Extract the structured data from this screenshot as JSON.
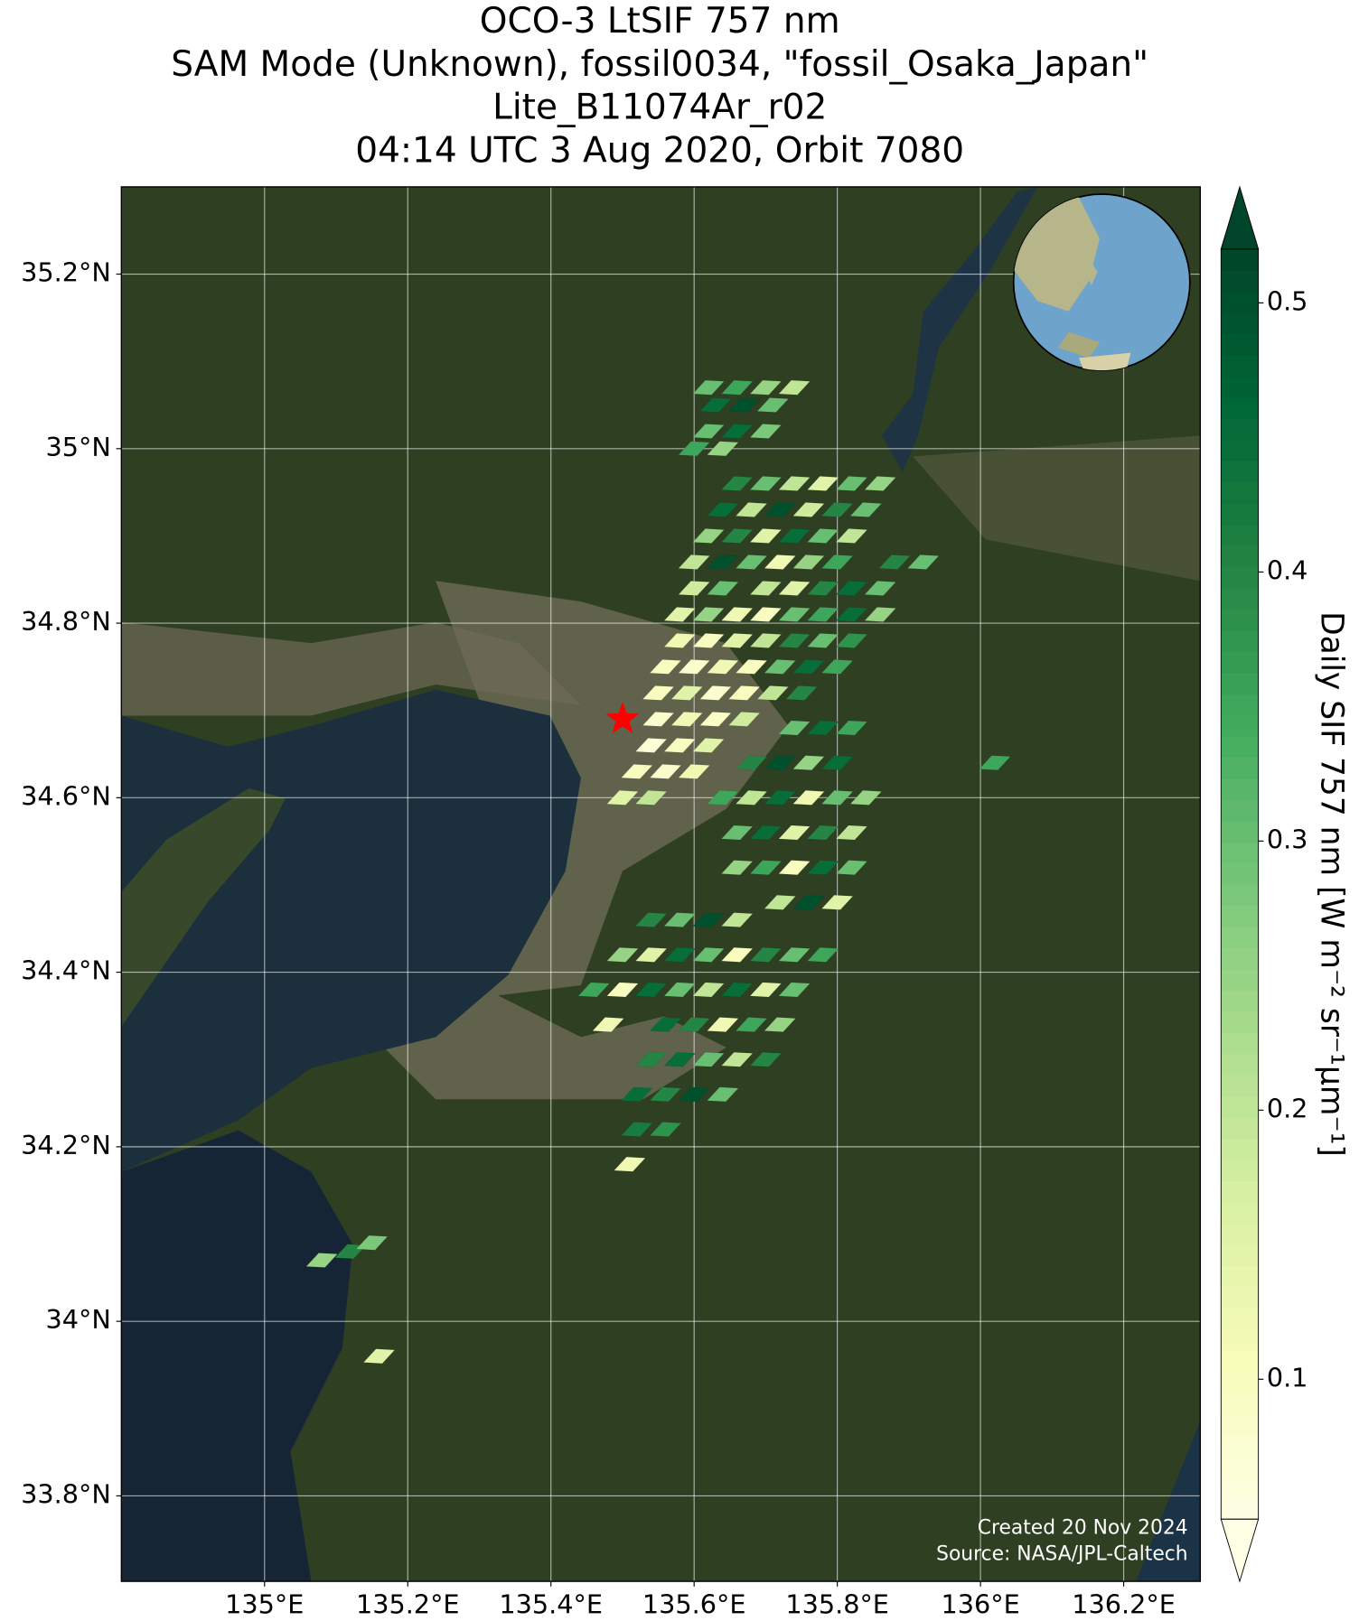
{
  "chart_data": {
    "type": "footprint-map",
    "title_lines": [
      "OCO-3 LtSIF 757 nm",
      "SAM Mode (Unknown), fossil0034, \"fossil_Osaka_Japan\"",
      "Lite_B11074Ar_r02",
      "04:14 UTC 3 Aug 2020, Orbit 7080"
    ],
    "xlim": [
      134.8,
      136.307
    ],
    "ylim": [
      33.702,
      35.3
    ],
    "xticks": [
      {
        "value": 135,
        "label": "135°E"
      },
      {
        "value": 135.2,
        "label": "135.2°E"
      },
      {
        "value": 135.4,
        "label": "135.4°E"
      },
      {
        "value": 135.6,
        "label": "135.6°E"
      },
      {
        "value": 135.8,
        "label": "135.8°E"
      },
      {
        "value": 136,
        "label": "136°E"
      },
      {
        "value": 136.2,
        "label": "136.2°E"
      }
    ],
    "yticks": [
      {
        "value": 33.8,
        "label": "33.8°N"
      },
      {
        "value": 34,
        "label": "34°N"
      },
      {
        "value": 34.2,
        "label": "34.2°N"
      },
      {
        "value": 34.4,
        "label": "34.4°N"
      },
      {
        "value": 34.6,
        "label": "34.6°N"
      },
      {
        "value": 34.8,
        "label": "34.8°N"
      },
      {
        "value": 35,
        "label": "35°N"
      },
      {
        "value": 35.2,
        "label": "35.2°N"
      }
    ],
    "grid": true,
    "colormap": "YlGn",
    "clim": [
      0.048,
      0.52
    ],
    "colorbar_ticks": [
      0.1,
      0.2,
      0.3,
      0.4,
      0.5
    ],
    "colorbar_label": "Daily SIF 757 nm [W m⁻² sr⁻¹μm⁻¹]",
    "target": {
      "lon": 135.5,
      "lat": 34.69
    },
    "annotations": [
      "Created 20 Nov 2024",
      "Source: NASA/JPL-Caltech"
    ],
    "footprints": [
      {
        "lon": 135.62,
        "lat": 35.07,
        "sif": 0.3
      },
      {
        "lon": 135.66,
        "lat": 35.07,
        "sif": 0.35
      },
      {
        "lon": 135.7,
        "lat": 35.07,
        "sif": 0.25
      },
      {
        "lon": 135.74,
        "lat": 35.07,
        "sif": 0.2
      },
      {
        "lon": 135.63,
        "lat": 35.05,
        "sif": 0.45
      },
      {
        "lon": 135.67,
        "lat": 35.05,
        "sif": 0.5
      },
      {
        "lon": 135.71,
        "lat": 35.05,
        "sif": 0.3
      },
      {
        "lon": 135.62,
        "lat": 35.02,
        "sif": 0.3
      },
      {
        "lon": 135.66,
        "lat": 35.02,
        "sif": 0.45
      },
      {
        "lon": 135.7,
        "lat": 35.02,
        "sif": 0.28
      },
      {
        "lon": 135.6,
        "lat": 35.0,
        "sif": 0.35
      },
      {
        "lon": 135.64,
        "lat": 35.0,
        "sif": 0.25
      },
      {
        "lon": 135.66,
        "lat": 34.96,
        "sif": 0.4
      },
      {
        "lon": 135.7,
        "lat": 34.96,
        "sif": 0.3
      },
      {
        "lon": 135.74,
        "lat": 34.96,
        "sif": 0.2
      },
      {
        "lon": 135.78,
        "lat": 34.96,
        "sif": 0.15
      },
      {
        "lon": 135.82,
        "lat": 34.96,
        "sif": 0.3
      },
      {
        "lon": 135.86,
        "lat": 34.96,
        "sif": 0.25
      },
      {
        "lon": 135.64,
        "lat": 34.93,
        "sif": 0.45
      },
      {
        "lon": 135.68,
        "lat": 34.93,
        "sif": 0.2
      },
      {
        "lon": 135.72,
        "lat": 34.93,
        "sif": 0.5
      },
      {
        "lon": 135.76,
        "lat": 34.93,
        "sif": 0.18
      },
      {
        "lon": 135.8,
        "lat": 34.93,
        "sif": 0.4
      },
      {
        "lon": 135.84,
        "lat": 34.93,
        "sif": 0.3
      },
      {
        "lon": 135.62,
        "lat": 34.9,
        "sif": 0.25
      },
      {
        "lon": 135.66,
        "lat": 34.9,
        "sif": 0.4
      },
      {
        "lon": 135.7,
        "lat": 34.9,
        "sif": 0.15
      },
      {
        "lon": 135.74,
        "lat": 34.9,
        "sif": 0.45
      },
      {
        "lon": 135.78,
        "lat": 34.9,
        "sif": 0.3
      },
      {
        "lon": 135.82,
        "lat": 34.9,
        "sif": 0.2
      },
      {
        "lon": 135.6,
        "lat": 34.87,
        "sif": 0.2
      },
      {
        "lon": 135.64,
        "lat": 34.87,
        "sif": 0.5
      },
      {
        "lon": 135.68,
        "lat": 34.87,
        "sif": 0.3
      },
      {
        "lon": 135.72,
        "lat": 34.87,
        "sif": 0.12
      },
      {
        "lon": 135.76,
        "lat": 34.87,
        "sif": 0.25
      },
      {
        "lon": 135.8,
        "lat": 34.87,
        "sif": 0.35
      },
      {
        "lon": 135.88,
        "lat": 34.87,
        "sif": 0.4
      },
      {
        "lon": 135.92,
        "lat": 34.87,
        "sif": 0.3
      },
      {
        "lon": 135.6,
        "lat": 34.84,
        "sif": 0.18
      },
      {
        "lon": 135.64,
        "lat": 34.84,
        "sif": 0.3
      },
      {
        "lon": 135.7,
        "lat": 34.84,
        "sif": 0.2
      },
      {
        "lon": 135.74,
        "lat": 34.84,
        "sif": 0.15
      },
      {
        "lon": 135.78,
        "lat": 34.84,
        "sif": 0.4
      },
      {
        "lon": 135.82,
        "lat": 34.84,
        "sif": 0.45
      },
      {
        "lon": 135.86,
        "lat": 34.84,
        "sif": 0.3
      },
      {
        "lon": 135.58,
        "lat": 34.81,
        "sif": 0.15
      },
      {
        "lon": 135.62,
        "lat": 34.81,
        "sif": 0.25
      },
      {
        "lon": 135.66,
        "lat": 34.81,
        "sif": 0.12
      },
      {
        "lon": 135.7,
        "lat": 34.81,
        "sif": 0.1
      },
      {
        "lon": 135.74,
        "lat": 34.81,
        "sif": 0.3
      },
      {
        "lon": 135.78,
        "lat": 34.81,
        "sif": 0.35
      },
      {
        "lon": 135.82,
        "lat": 34.81,
        "sif": 0.45
      },
      {
        "lon": 135.86,
        "lat": 34.81,
        "sif": 0.25
      },
      {
        "lon": 135.58,
        "lat": 34.78,
        "sif": 0.12
      },
      {
        "lon": 135.62,
        "lat": 34.78,
        "sif": 0.1
      },
      {
        "lon": 135.66,
        "lat": 34.78,
        "sif": 0.15
      },
      {
        "lon": 135.7,
        "lat": 34.78,
        "sif": 0.2
      },
      {
        "lon": 135.74,
        "lat": 34.78,
        "sif": 0.4
      },
      {
        "lon": 135.78,
        "lat": 34.78,
        "sif": 0.3
      },
      {
        "lon": 135.82,
        "lat": 34.78,
        "sif": 0.38
      },
      {
        "lon": 135.56,
        "lat": 34.75,
        "sif": 0.1
      },
      {
        "lon": 135.6,
        "lat": 34.75,
        "sif": 0.08
      },
      {
        "lon": 135.64,
        "lat": 34.75,
        "sif": 0.12
      },
      {
        "lon": 135.68,
        "lat": 34.75,
        "sif": 0.1
      },
      {
        "lon": 135.72,
        "lat": 34.75,
        "sif": 0.3
      },
      {
        "lon": 135.76,
        "lat": 34.75,
        "sif": 0.45
      },
      {
        "lon": 135.8,
        "lat": 34.75,
        "sif": 0.35
      },
      {
        "lon": 135.55,
        "lat": 34.72,
        "sif": 0.1
      },
      {
        "lon": 135.59,
        "lat": 34.72,
        "sif": 0.15
      },
      {
        "lon": 135.63,
        "lat": 34.72,
        "sif": 0.08
      },
      {
        "lon": 135.67,
        "lat": 34.72,
        "sif": 0.1
      },
      {
        "lon": 135.71,
        "lat": 34.72,
        "sif": 0.2
      },
      {
        "lon": 135.75,
        "lat": 34.72,
        "sif": 0.4
      },
      {
        "lon": 135.55,
        "lat": 34.69,
        "sif": 0.08
      },
      {
        "lon": 135.59,
        "lat": 34.69,
        "sif": 0.12
      },
      {
        "lon": 135.63,
        "lat": 34.69,
        "sif": 0.09
      },
      {
        "lon": 135.67,
        "lat": 34.69,
        "sif": 0.18
      },
      {
        "lon": 135.54,
        "lat": 34.66,
        "sif": 0.07
      },
      {
        "lon": 135.58,
        "lat": 34.66,
        "sif": 0.1
      },
      {
        "lon": 135.62,
        "lat": 34.66,
        "sif": 0.15
      },
      {
        "lon": 135.52,
        "lat": 34.63,
        "sif": 0.1
      },
      {
        "lon": 135.56,
        "lat": 34.63,
        "sif": 0.08
      },
      {
        "lon": 135.6,
        "lat": 34.63,
        "sif": 0.12
      },
      {
        "lon": 135.5,
        "lat": 34.6,
        "sif": 0.15
      },
      {
        "lon": 135.54,
        "lat": 34.6,
        "sif": 0.2
      },
      {
        "lon": 135.74,
        "lat": 34.68,
        "sif": 0.3
      },
      {
        "lon": 135.78,
        "lat": 34.68,
        "sif": 0.45
      },
      {
        "lon": 135.82,
        "lat": 34.68,
        "sif": 0.35
      },
      {
        "lon": 135.68,
        "lat": 34.64,
        "sif": 0.4
      },
      {
        "lon": 135.72,
        "lat": 34.64,
        "sif": 0.5
      },
      {
        "lon": 135.76,
        "lat": 34.64,
        "sif": 0.25
      },
      {
        "lon": 135.8,
        "lat": 34.64,
        "sif": 0.45
      },
      {
        "lon": 135.64,
        "lat": 34.6,
        "sif": 0.35
      },
      {
        "lon": 135.68,
        "lat": 34.6,
        "sif": 0.2
      },
      {
        "lon": 135.72,
        "lat": 34.6,
        "sif": 0.45
      },
      {
        "lon": 135.76,
        "lat": 34.6,
        "sif": 0.12
      },
      {
        "lon": 135.8,
        "lat": 34.6,
        "sif": 0.3
      },
      {
        "lon": 135.84,
        "lat": 34.6,
        "sif": 0.25
      },
      {
        "lon": 135.66,
        "lat": 34.56,
        "sif": 0.3
      },
      {
        "lon": 135.7,
        "lat": 34.56,
        "sif": 0.45
      },
      {
        "lon": 135.74,
        "lat": 34.56,
        "sif": 0.15
      },
      {
        "lon": 135.78,
        "lat": 34.56,
        "sif": 0.4
      },
      {
        "lon": 135.82,
        "lat": 34.56,
        "sif": 0.2
      },
      {
        "lon": 135.66,
        "lat": 34.52,
        "sif": 0.25
      },
      {
        "lon": 135.7,
        "lat": 34.52,
        "sif": 0.35
      },
      {
        "lon": 135.74,
        "lat": 34.52,
        "sif": 0.1
      },
      {
        "lon": 135.78,
        "lat": 34.52,
        "sif": 0.45
      },
      {
        "lon": 135.82,
        "lat": 34.52,
        "sif": 0.3
      },
      {
        "lon": 135.72,
        "lat": 34.48,
        "sif": 0.2
      },
      {
        "lon": 135.76,
        "lat": 34.48,
        "sif": 0.5
      },
      {
        "lon": 135.8,
        "lat": 34.48,
        "sif": 0.15
      },
      {
        "lon": 135.54,
        "lat": 34.46,
        "sif": 0.4
      },
      {
        "lon": 135.58,
        "lat": 34.46,
        "sif": 0.3
      },
      {
        "lon": 135.62,
        "lat": 34.46,
        "sif": 0.5
      },
      {
        "lon": 135.66,
        "lat": 34.46,
        "sif": 0.2
      },
      {
        "lon": 135.5,
        "lat": 34.42,
        "sif": 0.25
      },
      {
        "lon": 135.54,
        "lat": 34.42,
        "sif": 0.15
      },
      {
        "lon": 135.58,
        "lat": 34.42,
        "sif": 0.45
      },
      {
        "lon": 135.62,
        "lat": 34.42,
        "sif": 0.3
      },
      {
        "lon": 135.66,
        "lat": 34.42,
        "sif": 0.1
      },
      {
        "lon": 135.7,
        "lat": 34.42,
        "sif": 0.4
      },
      {
        "lon": 135.74,
        "lat": 34.42,
        "sif": 0.3
      },
      {
        "lon": 135.78,
        "lat": 34.42,
        "sif": 0.35
      },
      {
        "lon": 135.46,
        "lat": 34.38,
        "sif": 0.35
      },
      {
        "lon": 135.5,
        "lat": 34.38,
        "sif": 0.1
      },
      {
        "lon": 135.54,
        "lat": 34.38,
        "sif": 0.45
      },
      {
        "lon": 135.58,
        "lat": 34.38,
        "sif": 0.3
      },
      {
        "lon": 135.62,
        "lat": 34.38,
        "sif": 0.2
      },
      {
        "lon": 135.66,
        "lat": 34.38,
        "sif": 0.45
      },
      {
        "lon": 135.7,
        "lat": 34.38,
        "sif": 0.15
      },
      {
        "lon": 135.74,
        "lat": 34.38,
        "sif": 0.3
      },
      {
        "lon": 135.48,
        "lat": 34.34,
        "sif": 0.12
      },
      {
        "lon": 135.56,
        "lat": 34.34,
        "sif": 0.45
      },
      {
        "lon": 135.6,
        "lat": 34.34,
        "sif": 0.4
      },
      {
        "lon": 135.64,
        "lat": 34.34,
        "sif": 0.12
      },
      {
        "lon": 135.68,
        "lat": 34.34,
        "sif": 0.35
      },
      {
        "lon": 135.72,
        "lat": 34.34,
        "sif": 0.25
      },
      {
        "lon": 135.54,
        "lat": 34.3,
        "sif": 0.4
      },
      {
        "lon": 135.58,
        "lat": 34.3,
        "sif": 0.45
      },
      {
        "lon": 135.62,
        "lat": 34.3,
        "sif": 0.3
      },
      {
        "lon": 135.66,
        "lat": 34.3,
        "sif": 0.2
      },
      {
        "lon": 135.7,
        "lat": 34.3,
        "sif": 0.4
      },
      {
        "lon": 135.52,
        "lat": 34.26,
        "sif": 0.45
      },
      {
        "lon": 135.56,
        "lat": 34.26,
        "sif": 0.4
      },
      {
        "lon": 135.6,
        "lat": 34.26,
        "sif": 0.5
      },
      {
        "lon": 135.64,
        "lat": 34.26,
        "sif": 0.3
      },
      {
        "lon": 135.52,
        "lat": 34.22,
        "sif": 0.42
      },
      {
        "lon": 135.56,
        "lat": 34.22,
        "sif": 0.38
      },
      {
        "lon": 135.51,
        "lat": 34.18,
        "sif": 0.12
      },
      {
        "lon": 136.02,
        "lat": 34.64,
        "sif": 0.35
      },
      {
        "lon": 135.12,
        "lat": 34.08,
        "sif": 0.4
      },
      {
        "lon": 135.15,
        "lat": 34.09,
        "sif": 0.28
      },
      {
        "lon": 135.08,
        "lat": 34.07,
        "sif": 0.25
      },
      {
        "lon": 135.16,
        "lat": 33.96,
        "sif": 0.15
      }
    ]
  }
}
